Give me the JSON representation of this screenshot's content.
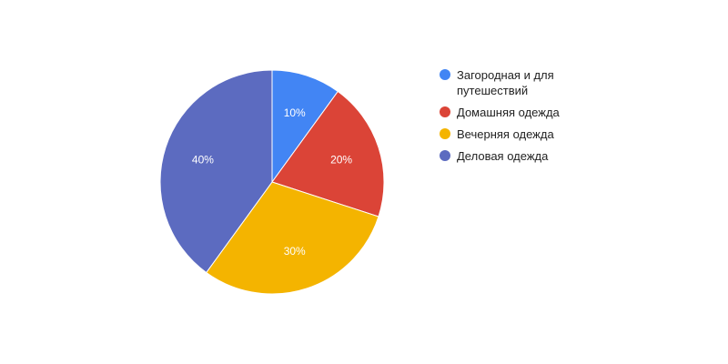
{
  "chart_data": {
    "type": "pie",
    "title": "",
    "categories": [
      "Загородная и для путешествий",
      "Домашняя одежда",
      "Вечерняя одежда",
      "Деловая одежда"
    ],
    "values": [
      10,
      20,
      30,
      40
    ],
    "labels": [
      "10%",
      "20%",
      "30%",
      "40%"
    ],
    "colors": [
      "#4285f4",
      "#db4437",
      "#f4b400",
      "#5c6bc0"
    ],
    "legend_position": "right"
  }
}
